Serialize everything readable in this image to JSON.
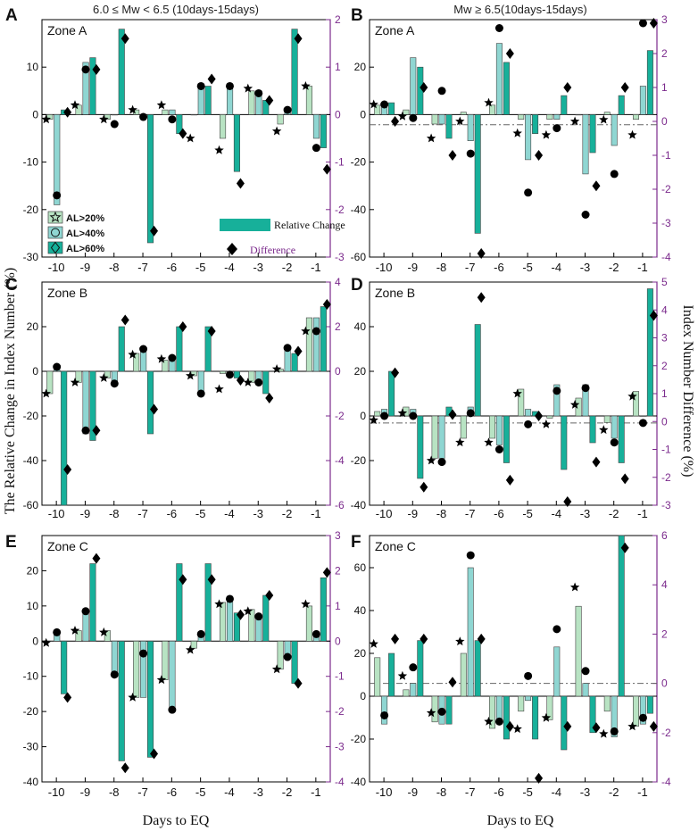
{
  "figure": {
    "ylabel_left": "The Relative Change in Index Number (%)",
    "ylabel_right": "Index Number Difference (%)",
    "xlabel": "Days to EQ",
    "col_titles": [
      "6.0 ≤ Mw < 6.5 (10days-15days)",
      "Mw ≥ 6.5(10days-15days)"
    ],
    "colors": {
      "al20": "#b8e3c3",
      "al40": "#8fd6d2",
      "al60": "#17b09a",
      "right_axis": "#7b2a8c",
      "edge": "#444444"
    },
    "legend": {
      "series": [
        "AL>20%",
        "AL>40%",
        "AL>60%"
      ],
      "relative_change": "Relative Change",
      "difference": "Difference"
    }
  },
  "chart_data": [
    {
      "panel": "A",
      "zone": "Zone A",
      "type": "bar",
      "categories": [
        "-10",
        "-9",
        "-8",
        "-7",
        "-6",
        "-5",
        "-4",
        "-3",
        "-2",
        "-1"
      ],
      "ylim": [
        -30,
        20
      ],
      "y2lim": [
        -3,
        2
      ],
      "yticks": [
        -30,
        -20,
        -10,
        0,
        10
      ],
      "y2ticks": [
        -3,
        -2,
        -1,
        0,
        1,
        2
      ],
      "series": [
        {
          "name": "AL>20%",
          "values": [
            -1,
            2,
            -1,
            1,
            1,
            0,
            -5,
            5,
            -2,
            6
          ],
          "marker": "star",
          "diff": [
            -0.1,
            0.2,
            -0.1,
            0.1,
            0.2,
            -0.5,
            -0.75,
            0.55,
            -0.35,
            0.6
          ]
        },
        {
          "name": "AL>40%",
          "values": [
            -19,
            11,
            0,
            0,
            1,
            6,
            6,
            5,
            1,
            -5
          ],
          "marker": "circle",
          "diff": [
            -1.7,
            0.95,
            -0.2,
            -0.05,
            -0.1,
            0.6,
            0.6,
            0.45,
            0.1,
            -0.7
          ]
        },
        {
          "name": "AL>60%",
          "values": [
            1,
            12,
            18,
            -27,
            -4,
            6,
            -12,
            3,
            18,
            -7
          ],
          "marker": "diamond",
          "diff": [
            0.05,
            0.95,
            1.6,
            -2.45,
            -0.4,
            0.75,
            -1.45,
            0.3,
            1.6,
            -1.15
          ]
        }
      ]
    },
    {
      "panel": "B",
      "zone": "Zone A",
      "type": "bar",
      "categories": [
        "-10",
        "-9",
        "-8",
        "-7",
        "-6",
        "-5",
        "-4",
        "-3",
        "-2",
        "-1"
      ],
      "ylim": [
        -60,
        40
      ],
      "y2lim": [
        -4,
        3
      ],
      "yticks": [
        -60,
        -40,
        -20,
        0,
        20
      ],
      "y2ticks": [
        -4,
        -3,
        -2,
        -1,
        0,
        1,
        2,
        3
      ],
      "dashed_zero_right": -0.1,
      "series": [
        {
          "name": "AL>20%",
          "values": [
            4,
            2,
            -4,
            1,
            4,
            -2,
            -2,
            0,
            1,
            -2
          ],
          "marker": "star",
          "diff": [
            0.5,
            0.15,
            -0.5,
            0.0,
            0.55,
            -0.35,
            -0.4,
            0.0,
            0.05,
            -0.4
          ]
        },
        {
          "name": "AL>40%",
          "values": [
            4,
            24,
            -4,
            -11,
            30,
            -19,
            -2,
            -25,
            -13,
            12
          ],
          "marker": "circle",
          "diff": [
            0.5,
            0.1,
            0.9,
            -0.95,
            2.75,
            -2.1,
            -0.2,
            -2.75,
            -1.55,
            2.95
          ]
        },
        {
          "name": "AL>60%",
          "values": [
            5,
            20,
            -10,
            -50,
            22,
            -8,
            8,
            -16,
            8,
            27
          ],
          "marker": "diamond",
          "diff": [
            0.0,
            1.0,
            -1.0,
            -3.9,
            2.0,
            -1.0,
            1.0,
            -1.9,
            1.0,
            3.0
          ]
        }
      ]
    },
    {
      "panel": "C",
      "zone": "Zone B",
      "type": "bar",
      "categories": [
        "-10",
        "-9",
        "-8",
        "-7",
        "-6",
        "-5",
        "-4",
        "-3",
        "-2",
        "-1"
      ],
      "ylim": [
        -60,
        40
      ],
      "y2lim": [
        -6,
        4
      ],
      "yticks": [
        -60,
        -40,
        -20,
        0,
        20
      ],
      "y2ticks": [
        -6,
        -4,
        -2,
        0,
        2,
        4
      ],
      "series": [
        {
          "name": "AL>20%",
          "values": [
            -10,
            -5,
            -3,
            8,
            5,
            -2,
            -1,
            -5,
            1,
            24
          ],
          "marker": "star",
          "diff": [
            -1.0,
            -0.5,
            -0.3,
            0.75,
            0.55,
            -0.2,
            -0.8,
            -0.5,
            0.1,
            1.8
          ]
        },
        {
          "name": "AL>40%",
          "values": [
            1,
            -28,
            -5,
            10,
            7,
            -10,
            -1,
            -5,
            10,
            24
          ],
          "marker": "circle",
          "diff": [
            0.2,
            -2.65,
            -0.55,
            1.0,
            0.6,
            -1.0,
            -0.15,
            -0.5,
            1.05,
            1.8
          ]
        },
        {
          "name": "AL>60%",
          "values": [
            -60,
            -31,
            20,
            -28,
            20,
            20,
            -3,
            -10,
            8,
            29
          ],
          "marker": "diamond",
          "diff": [
            -4.4,
            -2.65,
            2.3,
            -1.7,
            2.0,
            1.8,
            -0.4,
            -1.2,
            0.9,
            3.0
          ]
        }
      ]
    },
    {
      "panel": "D",
      "zone": "Zone B",
      "type": "bar",
      "categories": [
        "-10",
        "-9",
        "-8",
        "-7",
        "-6",
        "-5",
        "-4",
        "-3",
        "-2",
        "-1"
      ],
      "ylim": [
        -40,
        60
      ],
      "y2lim": [
        -3,
        5
      ],
      "yticks": [
        -40,
        -20,
        0,
        20,
        40
      ],
      "y2ticks": [
        -3,
        -2,
        -1,
        0,
        1,
        2,
        3,
        4,
        5
      ],
      "dashed_zero_right": -0.05,
      "series": [
        {
          "name": "AL>20%",
          "values": [
            2,
            4,
            -19,
            -10,
            -10,
            12,
            -1,
            8,
            -3,
            11
          ],
          "marker": "star",
          "diff": [
            0.05,
            0.3,
            -1.4,
            -0.75,
            -0.75,
            1.0,
            -0.1,
            0.6,
            -0.3,
            0.9
          ]
        },
        {
          "name": "AL>40%",
          "values": [
            3,
            3,
            -19,
            4,
            -13,
            3,
            14,
            14,
            -10,
            0
          ],
          "marker": "circle",
          "diff": [
            0.2,
            0.2,
            -1.45,
            0.3,
            -1.0,
            -0.1,
            1.1,
            1.2,
            -0.75,
            -0.05
          ]
        },
        {
          "name": "AL>60%",
          "values": [
            20,
            -28,
            4,
            41,
            -21,
            2,
            -24,
            -12,
            -21,
            57
          ],
          "marker": "diamond",
          "diff": [
            1.75,
            -2.35,
            0.25,
            4.45,
            -2.1,
            0.2,
            -2.95,
            -1.45,
            -2.05,
            3.8
          ]
        }
      ]
    },
    {
      "panel": "E",
      "zone": "Zone C",
      "type": "bar",
      "categories": [
        "-10",
        "-9",
        "-8",
        "-7",
        "-6",
        "-5",
        "-4",
        "-3",
        "-2",
        "-1"
      ],
      "ylim": [
        -40,
        30
      ],
      "y2lim": [
        -4,
        3
      ],
      "yticks": [
        -40,
        -30,
        -20,
        -10,
        0,
        10,
        20
      ],
      "y2ticks": [
        -4,
        -3,
        -2,
        -1,
        0,
        1,
        2,
        3
      ],
      "series": [
        {
          "name": "AL>20%",
          "values": [
            0,
            3,
            3,
            -16,
            -11,
            -2,
            11,
            9,
            -8,
            10
          ],
          "marker": "star",
          "diff": [
            -0.05,
            0.3,
            0.25,
            -1.6,
            -1.1,
            -0.25,
            1.05,
            0.85,
            -0.8,
            1.05
          ]
        },
        {
          "name": "AL>40%",
          "values": [
            2,
            8,
            -9,
            -16,
            -20,
            2,
            12,
            7,
            -5,
            2
          ],
          "marker": "circle",
          "diff": [
            0.25,
            0.85,
            -0.95,
            -0.35,
            -1.95,
            0.2,
            1.2,
            0.7,
            -0.45,
            0.2
          ]
        },
        {
          "name": "AL>60%",
          "values": [
            -15,
            22,
            -34,
            -33,
            22,
            22,
            8,
            13,
            -12,
            18
          ],
          "marker": "diamond",
          "diff": [
            -1.6,
            2.35,
            -3.6,
            -3.2,
            1.75,
            1.75,
            0.75,
            1.3,
            -1.2,
            1.95
          ]
        }
      ]
    },
    {
      "panel": "F",
      "zone": "Zone C",
      "type": "bar",
      "categories": [
        "-10",
        "-9",
        "-8",
        "-7",
        "-6",
        "-5",
        "-4",
        "-3",
        "-2",
        "-1"
      ],
      "ylim": [
        -40,
        75
      ],
      "y2lim": [
        -4,
        6
      ],
      "yticks": [
        -40,
        -20,
        0,
        20,
        40,
        60
      ],
      "y2ticks": [
        -4,
        -2,
        0,
        2,
        4,
        6
      ],
      "dashed_zero_right": 0,
      "series": [
        {
          "name": "AL>20%",
          "values": [
            18,
            3,
            -12,
            20,
            -15,
            -7,
            -11,
            42,
            -7,
            -14
          ],
          "marker": "star",
          "diff": [
            1.6,
            0.3,
            -1.2,
            1.7,
            -1.55,
            -1.85,
            -1.4,
            3.9,
            -2.05,
            -1.75
          ]
        },
        {
          "name": "AL>40%",
          "values": [
            -13,
            6,
            -13,
            60,
            -13,
            -2,
            23,
            6,
            -19,
            -13
          ],
          "marker": "circle",
          "diff": [
            -1.3,
            0.65,
            -1.15,
            5.2,
            -1.55,
            0.3,
            2.2,
            0.5,
            -1.95,
            -1.4
          ]
        },
        {
          "name": "AL>60%",
          "values": [
            20,
            26,
            -13,
            26,
            -20,
            -20,
            -25,
            -17,
            75,
            -8
          ],
          "marker": "diamond",
          "diff": [
            1.8,
            1.8,
            0.05,
            1.8,
            -1.75,
            -3.85,
            -1.75,
            -1.8,
            5.5,
            -1.75
          ]
        }
      ]
    }
  ]
}
